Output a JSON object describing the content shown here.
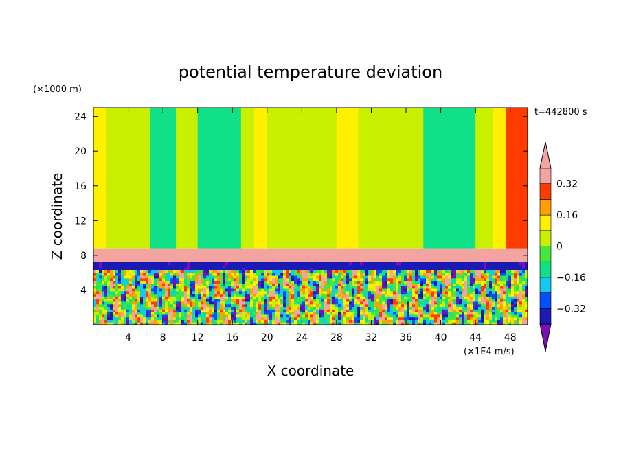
{
  "chart_data": {
    "type": "heatmap",
    "title": "potential temperature deviation",
    "xlabel": "X coordinate",
    "ylabel": "Z coordinate",
    "x_unit": "(×1E4 m/s)",
    "y_unit": "(×1000 m)",
    "time_label": "t=442800 s",
    "xlim": [
      0,
      50
    ],
    "ylim": [
      0,
      25
    ],
    "x_ticks": [
      4,
      8,
      12,
      16,
      20,
      24,
      28,
      32,
      36,
      40,
      44,
      48
    ],
    "y_ticks": [
      4,
      8,
      12,
      16,
      20,
      24
    ],
    "colorbar": {
      "levels": [
        -0.4,
        -0.32,
        -0.24,
        -0.16,
        -0.08,
        0,
        0.08,
        0.16,
        0.24,
        0.32,
        0.4
      ],
      "labels": [
        "0.32",
        "0.16",
        "0",
        "−0.16",
        "−0.32"
      ],
      "label_values": [
        0.32,
        0.16,
        0,
        -0.16,
        -0.32
      ],
      "colors": [
        "#7a0db5",
        "#1a1ab4",
        "#0050ff",
        "#14c8f0",
        "#10e088",
        "#44e83c",
        "#c8f000",
        "#fff000",
        "#ffa000",
        "#ff3c00",
        "#f4a4a0"
      ],
      "extend": "both"
    },
    "upper_layer_columns": [
      {
        "x": [
          0,
          1.5
        ],
        "value": 0.12
      },
      {
        "x": [
          1.5,
          5
        ],
        "value": 0.0
      },
      {
        "x": [
          5,
          6.5
        ],
        "value": 0.06
      },
      {
        "x": [
          6.5,
          9.5
        ],
        "value": -0.1
      },
      {
        "x": [
          9.5,
          12
        ],
        "value": 0.0
      },
      {
        "x": [
          12,
          17
        ],
        "value": -0.1
      },
      {
        "x": [
          17,
          18.5
        ],
        "value": 0.04
      },
      {
        "x": [
          18.5,
          20
        ],
        "value": 0.08
      },
      {
        "x": [
          20,
          21.5
        ],
        "value": 0.0
      },
      {
        "x": [
          21.5,
          23.5
        ],
        "value": 0.04
      },
      {
        "x": [
          23.5,
          26
        ],
        "value": 0.02
      },
      {
        "x": [
          26,
          28
        ],
        "value": 0.06
      },
      {
        "x": [
          28,
          30.5
        ],
        "value": 0.12
      },
      {
        "x": [
          30.5,
          34
        ],
        "value": 0.0
      },
      {
        "x": [
          34,
          36
        ],
        "value": 0.06
      },
      {
        "x": [
          36,
          38
        ],
        "value": 0.0
      },
      {
        "x": [
          38,
          44
        ],
        "value": -0.12
      },
      {
        "x": [
          44,
          46
        ],
        "value": 0.0
      },
      {
        "x": [
          46,
          47.5
        ],
        "value": 0.12
      },
      {
        "x": [
          47.5,
          50
        ],
        "value": 0.28
      }
    ],
    "inversion_band": {
      "z": [
        7.2,
        8.8
      ],
      "value": 0.4
    },
    "lower_layer": {
      "z": [
        0,
        7.2
      ],
      "pattern": "turbulent",
      "range": [
        -0.4,
        0.4
      ]
    }
  }
}
